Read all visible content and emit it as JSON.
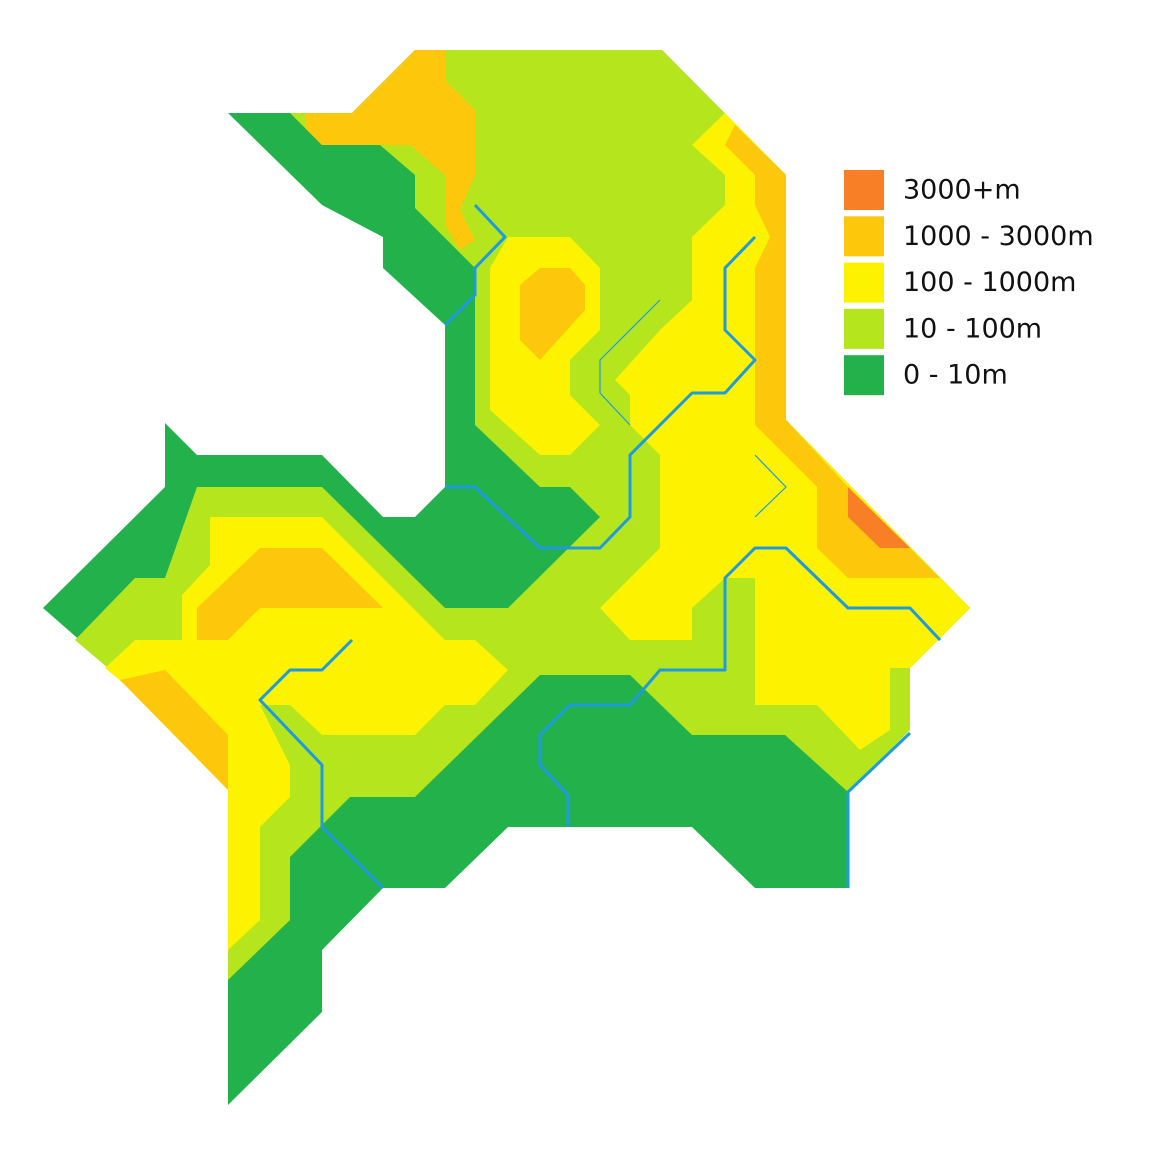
{
  "legend": {
    "items": [
      {
        "label": "3000+m",
        "color": "#f97f26"
      },
      {
        "label": "1000 - 3000m",
        "color": "#fdc70c"
      },
      {
        "label": "100 - 1000m",
        "color": "#fdf200"
      },
      {
        "label": "10 - 100m",
        "color": "#b5e51d"
      },
      {
        "label": "0 - 10m",
        "color": "#23b14c"
      }
    ]
  }
}
